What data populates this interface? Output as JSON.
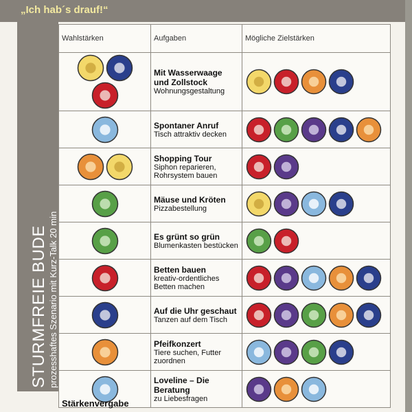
{
  "header": {
    "title": "„Ich hab´s drauf!“"
  },
  "sidebar": {
    "title": "STURMFREIE BUDE",
    "subtitle": "prozesshaftes Szenario mit Kurz-Talk 20 min"
  },
  "table": {
    "columns": [
      "Wahlstärken",
      "Aufgaben",
      "Mögliche Zielstärken"
    ],
    "rows": [
      {
        "task": "Mit Wasserwaage und Zollstock",
        "description": "Wohnungsgestaltung"
      },
      {
        "task": "Spontaner Anruf",
        "description": "Tisch attraktiv decken"
      },
      {
        "task": "Shopping Tour",
        "description": "Siphon reparieren, Rohrsystem bauen"
      },
      {
        "task": "Mäuse und Kröten",
        "description": "Pizzabestellung"
      },
      {
        "task": "Es grünt so grün",
        "description": "Blumenkasten bestücken"
      },
      {
        "task": "Betten bauen",
        "description": "kreativ-ordentliches Betten machen"
      },
      {
        "task": "Auf die Uhr geschaut",
        "description": "Tanzen auf dem Tisch"
      },
      {
        "task": "Pfeifkonzert",
        "description": "Tiere suchen, Futter zuordnen"
      },
      {
        "task": "Loveline – Die Beratung",
        "description": "zu Liebesfragen"
      }
    ]
  },
  "footer": {
    "text": "Stärkenvergabe"
  }
}
